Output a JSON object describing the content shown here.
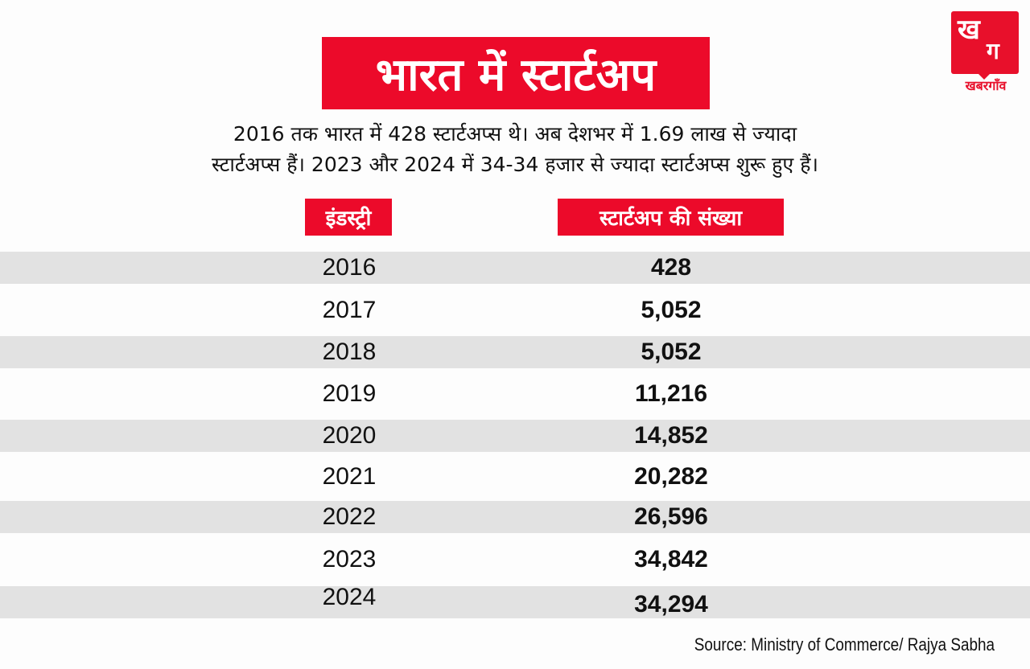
{
  "brand": {
    "logo_glyph_top": "ख",
    "logo_glyph_bottom": "ग",
    "logo_name": "खबरगाँव",
    "accent_color": "#ec0a2a"
  },
  "title": "भारत में स्टार्टअप",
  "intro": {
    "line1": "2016 तक भारत में 428 स्टार्टअप्स थे। अब देशभर में 1.69 लाख से ज्यादा",
    "line2": "स्टार्टअप्स हैं। 2023 और 2024 में 34-34 हजार से ज्यादा स्टार्टअप्स शुरू हुए हैं।"
  },
  "table": {
    "headers": {
      "year": "इंडस्ट्री",
      "count": "स्टार्टअप की संख्या"
    },
    "rows": [
      {
        "year": "2016",
        "count": "428"
      },
      {
        "year": "2017",
        "count": "5,052"
      },
      {
        "year": "2018",
        "count": "5,052"
      },
      {
        "year": "2019",
        "count": "11,216"
      },
      {
        "year": "2020",
        "count": "14,852"
      },
      {
        "year": "2021",
        "count": "20,282"
      },
      {
        "year": "2022",
        "count": "26,596"
      },
      {
        "year": "2023",
        "count": "34,842"
      },
      {
        "year": "2024",
        "count": "34,294"
      }
    ]
  },
  "source": "Source: Ministry of Commerce/ Rajya Sabha"
}
